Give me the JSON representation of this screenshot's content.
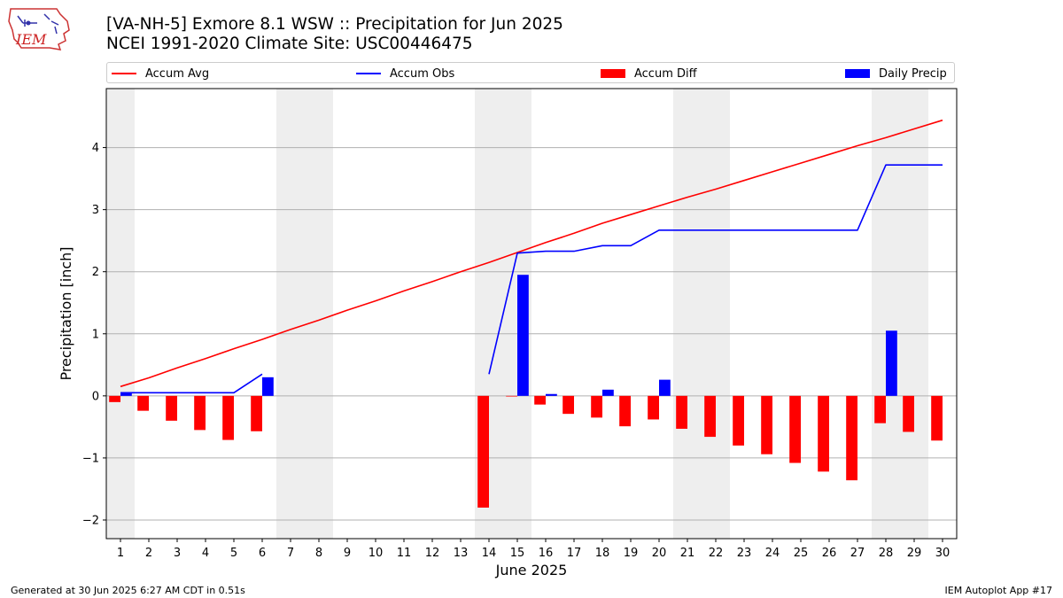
{
  "title": "[VA-NH-5] Exmore 8.1 WSW :: Precipitation for Jun 2025",
  "subtitle": "NCEI 1991-2020 Climate Site: USC00446475",
  "footer_left": "Generated at 30 Jun 2025 6:27 AM CDT in 0.51s",
  "footer_right": "IEM Autoplot App #17",
  "logo_text": "IEM",
  "colors": {
    "avg": "#ff0000",
    "obs": "#0000ff",
    "diff": "#ff0000",
    "daily": "#0000ff",
    "shade": "#eeeeee",
    "grid": "#b0b0b0"
  },
  "chart_data": {
    "type": "bar",
    "xlabel": "June 2025",
    "ylabel": "Precipitation [inch]",
    "x": [
      1,
      2,
      3,
      4,
      5,
      6,
      7,
      8,
      9,
      10,
      11,
      12,
      13,
      14,
      15,
      16,
      17,
      18,
      19,
      20,
      21,
      22,
      23,
      24,
      25,
      26,
      27,
      28,
      29,
      30
    ],
    "xlim": [
      0.5,
      30.5
    ],
    "ylim": [
      -2.3,
      4.95
    ],
    "yticks": [
      -2,
      -1,
      0,
      1,
      2,
      3,
      4
    ],
    "ytick_labels": [
      "−2",
      "−1",
      "0",
      "1",
      "2",
      "3",
      "4"
    ],
    "grid": "horizontal",
    "legend_position": "top",
    "weekend_shading": [
      [
        0.5,
        1.5
      ],
      [
        6.5,
        8.5
      ],
      [
        13.5,
        15.5
      ],
      [
        20.5,
        22.5
      ],
      [
        27.5,
        29.5
      ]
    ],
    "series": [
      {
        "name": "Accum Avg",
        "kind": "line",
        "values": [
          0.15,
          0.29,
          0.45,
          0.6,
          0.76,
          0.91,
          1.07,
          1.22,
          1.38,
          1.53,
          1.69,
          1.84,
          2.0,
          2.15,
          2.31,
          2.47,
          2.62,
          2.78,
          2.92,
          3.06,
          3.2,
          3.33,
          3.47,
          3.61,
          3.75,
          3.89,
          4.03,
          4.16,
          4.3,
          4.44
        ]
      },
      {
        "name": "Accum Obs",
        "kind": "line",
        "values": [
          0.05,
          0.05,
          0.05,
          0.05,
          0.05,
          0.35,
          null,
          null,
          null,
          null,
          null,
          null,
          null,
          0.35,
          2.3,
          2.33,
          2.33,
          2.42,
          2.42,
          2.67,
          2.67,
          2.67,
          2.67,
          2.67,
          2.67,
          2.67,
          2.67,
          3.72,
          3.72,
          3.72
        ]
      },
      {
        "name": "Accum Diff",
        "kind": "bar",
        "values": [
          -0.1,
          -0.24,
          -0.4,
          -0.55,
          -0.71,
          -0.57,
          null,
          null,
          null,
          null,
          null,
          null,
          null,
          -1.8,
          -0.01,
          -0.14,
          -0.29,
          -0.35,
          -0.49,
          -0.38,
          -0.53,
          -0.66,
          -0.8,
          -0.94,
          -1.08,
          -1.22,
          -1.36,
          -0.44,
          -0.58,
          -0.72
        ]
      },
      {
        "name": "Daily Precip",
        "kind": "bar",
        "values": [
          0.05,
          0,
          0,
          0,
          0,
          0.3,
          null,
          null,
          null,
          null,
          null,
          null,
          null,
          0,
          1.95,
          0.03,
          0,
          0.1,
          0,
          0.26,
          0,
          0,
          0,
          0,
          0,
          0,
          0,
          1.05,
          0,
          0
        ]
      }
    ]
  }
}
